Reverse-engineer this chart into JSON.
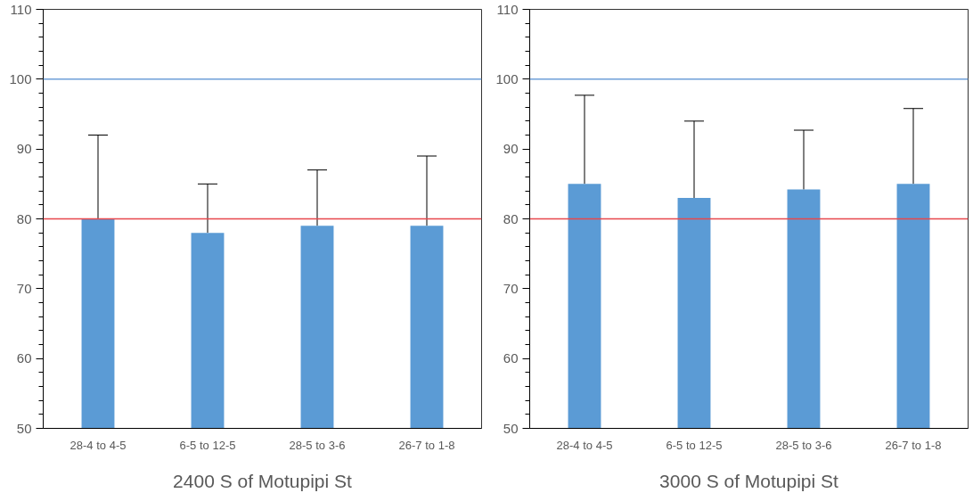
{
  "chart_data": [
    {
      "type": "bar",
      "xlabel": "2400 S of Motupipi St",
      "categories": [
        "28-4 to 4-5",
        "6-5 to 12-5",
        "28-5 to 3-6",
        "26-7 to 1-8"
      ],
      "values": [
        80,
        78,
        79,
        79
      ],
      "color": "#5b9bd5",
      "errors": [
        [
          80,
          92
        ],
        [
          78,
          85
        ],
        [
          79,
          87
        ],
        [
          79,
          89
        ]
      ],
      "ylim": [
        50,
        110
      ],
      "yticks": [
        50,
        {
          "value": 52,
          "label": null
        },
        {
          "value": 54,
          "label": null
        },
        {
          "value": 56,
          "label": null
        },
        {
          "value": 58,
          "label": null
        },
        60,
        {
          "value": 62,
          "label": null
        },
        {
          "value": 64,
          "label": null
        },
        {
          "value": 66,
          "label": null
        },
        {
          "value": 68,
          "label": null
        },
        70,
        {
          "value": 72,
          "label": null
        },
        {
          "value": 74,
          "label": null
        },
        {
          "value": 76,
          "label": null
        },
        {
          "value": 78,
          "label": null
        },
        80,
        {
          "value": 82,
          "label": null
        },
        {
          "value": 84,
          "label": null
        },
        {
          "value": 86,
          "label": null
        },
        {
          "value": 88,
          "label": null
        },
        90,
        {
          "value": 92,
          "label": null
        },
        {
          "value": 94,
          "label": null
        },
        {
          "value": 96,
          "label": null
        },
        {
          "value": 98,
          "label": null
        },
        100,
        {
          "value": 102,
          "label": null
        },
        {
          "value": 104,
          "label": null
        },
        {
          "value": 106,
          "label": null
        },
        {
          "value": 108,
          "label": null
        },
        110
      ],
      "ref_lines": [
        {
          "axis": "y",
          "value": 100,
          "color": "#6f9fd8"
        },
        {
          "axis": "y",
          "value": 80,
          "color": "#e8474c"
        }
      ],
      "grid": false
    },
    {
      "type": "bar",
      "xlabel": "3000 S of Motupipi St",
      "categories": [
        "28-4 to 4-5",
        "6-5 to 12-5",
        "28-5 to 3-6",
        "26-7 to 1-8"
      ],
      "values": [
        85,
        83,
        84.2,
        85
      ],
      "color": "#5b9bd5",
      "errors": [
        [
          85,
          97.7
        ],
        [
          83,
          94
        ],
        [
          84.2,
          92.7
        ],
        [
          85,
          95.8
        ]
      ],
      "ylim": [
        50,
        110
      ],
      "yticks": [
        50,
        {
          "value": 52,
          "label": null
        },
        {
          "value": 54,
          "label": null
        },
        {
          "value": 56,
          "label": null
        },
        {
          "value": 58,
          "label": null
        },
        60,
        {
          "value": 62,
          "label": null
        },
        {
          "value": 64,
          "label": null
        },
        {
          "value": 66,
          "label": null
        },
        {
          "value": 68,
          "label": null
        },
        70,
        {
          "value": 72,
          "label": null
        },
        {
          "value": 74,
          "label": null
        },
        {
          "value": 76,
          "label": null
        },
        {
          "value": 78,
          "label": null
        },
        80,
        {
          "value": 82,
          "label": null
        },
        {
          "value": 84,
          "label": null
        },
        {
          "value": 86,
          "label": null
        },
        {
          "value": 88,
          "label": null
        },
        90,
        {
          "value": 92,
          "label": null
        },
        {
          "value": 94,
          "label": null
        },
        {
          "value": 96,
          "label": null
        },
        {
          "value": 98,
          "label": null
        },
        100,
        {
          "value": 102,
          "label": null
        },
        {
          "value": 104,
          "label": null
        },
        {
          "value": 106,
          "label": null
        },
        {
          "value": 108,
          "label": null
        },
        110
      ],
      "ref_lines": [
        {
          "axis": "y",
          "value": 100,
          "color": "#6f9fd8"
        },
        {
          "axis": "y",
          "value": 80,
          "color": "#e8474c"
        }
      ],
      "grid": false
    }
  ]
}
